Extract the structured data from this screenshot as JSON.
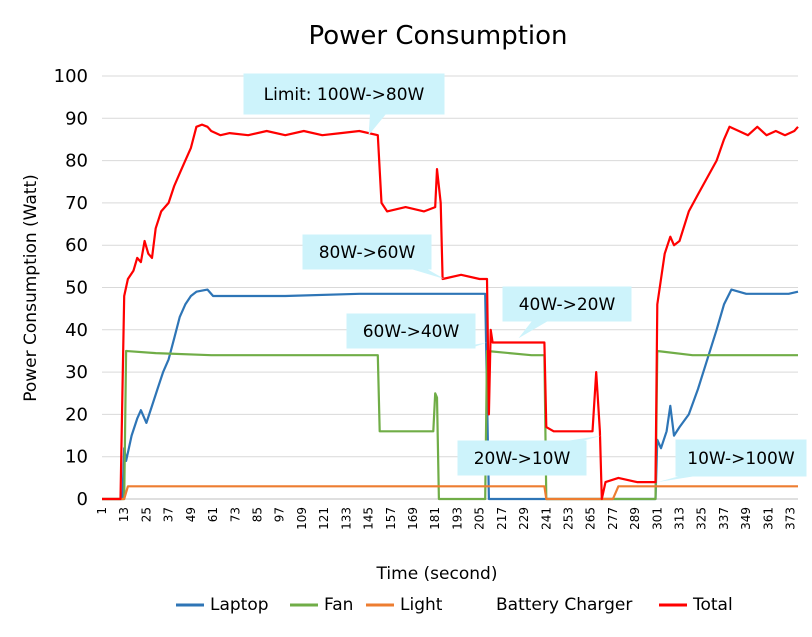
{
  "chart_data": {
    "type": "line",
    "title": "Power Consumption",
    "xlabel": "Time (second)",
    "ylabel": "Power Consumption (Watt)",
    "ylim": [
      0,
      100
    ],
    "yticks": [
      "0",
      "10",
      "20",
      "30",
      "40",
      "50",
      "60",
      "70",
      "80",
      "90",
      "100"
    ],
    "xlim": [
      1,
      377
    ],
    "xticks": [
      "1",
      "13",
      "25",
      "37",
      "49",
      "61",
      "73",
      "85",
      "97",
      "109",
      "121",
      "133",
      "145",
      "157",
      "169",
      "181",
      "193",
      "205",
      "217",
      "229",
      "241",
      "253",
      "265",
      "277",
      "289",
      "301",
      "313",
      "325",
      "337",
      "349",
      "361",
      "373"
    ],
    "grid": "horizontal",
    "legend_position": "bottom",
    "series": [
      {
        "name": "Laptop",
        "color": "#2e75b6",
        "points": [
          [
            1,
            0
          ],
          [
            12,
            0
          ],
          [
            13,
            12
          ],
          [
            14,
            9
          ],
          [
            17,
            15
          ],
          [
            20,
            19
          ],
          [
            22,
            21
          ],
          [
            25,
            18
          ],
          [
            28,
            22
          ],
          [
            31,
            26
          ],
          [
            34,
            30
          ],
          [
            37,
            33
          ],
          [
            40,
            38
          ],
          [
            43,
            43
          ],
          [
            46,
            46
          ],
          [
            49,
            48
          ],
          [
            52,
            49
          ],
          [
            58,
            49.5
          ],
          [
            61,
            48
          ],
          [
            70,
            48
          ],
          [
            100,
            48
          ],
          [
            140,
            48.5
          ],
          [
            180,
            48.5
          ],
          [
            208,
            48.5
          ],
          [
            210,
            0
          ],
          [
            241,
            0
          ],
          [
            300,
            0
          ],
          [
            301,
            14
          ],
          [
            303,
            12
          ],
          [
            306,
            16
          ],
          [
            308,
            22
          ],
          [
            310,
            15
          ],
          [
            313,
            17
          ],
          [
            318,
            20
          ],
          [
            323,
            26
          ],
          [
            328,
            33
          ],
          [
            333,
            40
          ],
          [
            337,
            46
          ],
          [
            341,
            49.5
          ],
          [
            345,
            49
          ],
          [
            349,
            48.5
          ],
          [
            360,
            48.5
          ],
          [
            372,
            48.5
          ],
          [
            377,
            49
          ]
        ]
      },
      {
        "name": "Fan",
        "color": "#70ad47",
        "points": [
          [
            1,
            0
          ],
          [
            13,
            0
          ],
          [
            14,
            35
          ],
          [
            30,
            34.5
          ],
          [
            60,
            34
          ],
          [
            100,
            34
          ],
          [
            140,
            34
          ],
          [
            150,
            34
          ],
          [
            151,
            16
          ],
          [
            180,
            16
          ],
          [
            181,
            25
          ],
          [
            182,
            24
          ],
          [
            183,
            0
          ],
          [
            208,
            0
          ],
          [
            209,
            35
          ],
          [
            233,
            34
          ],
          [
            240,
            34
          ],
          [
            241,
            0
          ],
          [
            300,
            0
          ],
          [
            301,
            35
          ],
          [
            320,
            34
          ],
          [
            350,
            34
          ],
          [
            377,
            34
          ]
        ]
      },
      {
        "name": "Light",
        "color": "#ed7d31",
        "points": [
          [
            1,
            0
          ],
          [
            13,
            0
          ],
          [
            15,
            3
          ],
          [
            60,
            3
          ],
          [
            120,
            3
          ],
          [
            180,
            3
          ],
          [
            240,
            3
          ],
          [
            241,
            0
          ],
          [
            277,
            0
          ],
          [
            280,
            3
          ],
          [
            310,
            3
          ],
          [
            350,
            3
          ],
          [
            377,
            3
          ]
        ]
      },
      {
        "name": "Battery Charger",
        "color": "#a5a5a5",
        "points": []
      },
      {
        "name": "Total",
        "color": "#ff0000",
        "points": [
          [
            1,
            0
          ],
          [
            11,
            0
          ],
          [
            12,
            25
          ],
          [
            13,
            48
          ],
          [
            15,
            52
          ],
          [
            18,
            54
          ],
          [
            20,
            57
          ],
          [
            22,
            56
          ],
          [
            24,
            61
          ],
          [
            26,
            58
          ],
          [
            28,
            57
          ],
          [
            30,
            64
          ],
          [
            33,
            68
          ],
          [
            37,
            70
          ],
          [
            40,
            74
          ],
          [
            43,
            77
          ],
          [
            46,
            80
          ],
          [
            49,
            83
          ],
          [
            52,
            88
          ],
          [
            55,
            88.5
          ],
          [
            58,
            88
          ],
          [
            60,
            87
          ],
          [
            65,
            86
          ],
          [
            70,
            86.5
          ],
          [
            80,
            86
          ],
          [
            90,
            87
          ],
          [
            100,
            86
          ],
          [
            110,
            87
          ],
          [
            120,
            86
          ],
          [
            130,
            86.5
          ],
          [
            140,
            87
          ],
          [
            150,
            86
          ],
          [
            152,
            70
          ],
          [
            155,
            68
          ],
          [
            165,
            69
          ],
          [
            175,
            68
          ],
          [
            181,
            69
          ],
          [
            182,
            78
          ],
          [
            184,
            70
          ],
          [
            185,
            52
          ],
          [
            195,
            53
          ],
          [
            205,
            52
          ],
          [
            209,
            52
          ],
          [
            210,
            20
          ],
          [
            211,
            40
          ],
          [
            212,
            37
          ],
          [
            220,
            37
          ],
          [
            230,
            37
          ],
          [
            240,
            37
          ],
          [
            241,
            17
          ],
          [
            245,
            16
          ],
          [
            260,
            16
          ],
          [
            266,
            16
          ],
          [
            268,
            30
          ],
          [
            270,
            16
          ],
          [
            271,
            0
          ],
          [
            273,
            4
          ],
          [
            280,
            5
          ],
          [
            290,
            4
          ],
          [
            298,
            4
          ],
          [
            300,
            4
          ],
          [
            301,
            46
          ],
          [
            303,
            52
          ],
          [
            305,
            58
          ],
          [
            308,
            62
          ],
          [
            310,
            60
          ],
          [
            313,
            61
          ],
          [
            318,
            68
          ],
          [
            323,
            72
          ],
          [
            328,
            76
          ],
          [
            333,
            80
          ],
          [
            337,
            85
          ],
          [
            340,
            88
          ],
          [
            345,
            87
          ],
          [
            350,
            86
          ],
          [
            355,
            88
          ],
          [
            360,
            86
          ],
          [
            365,
            87
          ],
          [
            370,
            86
          ],
          [
            375,
            87
          ],
          [
            377,
            88
          ]
        ]
      }
    ],
    "annotations": [
      {
        "text": "Limit: 100W->80W",
        "x": 145,
        "y": 86
      },
      {
        "text": "80W->60W",
        "x": 186,
        "y": 52
      },
      {
        "text": "60W->40W",
        "x": 209,
        "y": 37
      },
      {
        "text": "40W->20W",
        "x": 226,
        "y": 38
      },
      {
        "text": "20W->10W",
        "x": 271,
        "y": 15
      },
      {
        "text": "10W->100W",
        "x": 301,
        "y": 4
      }
    ]
  }
}
